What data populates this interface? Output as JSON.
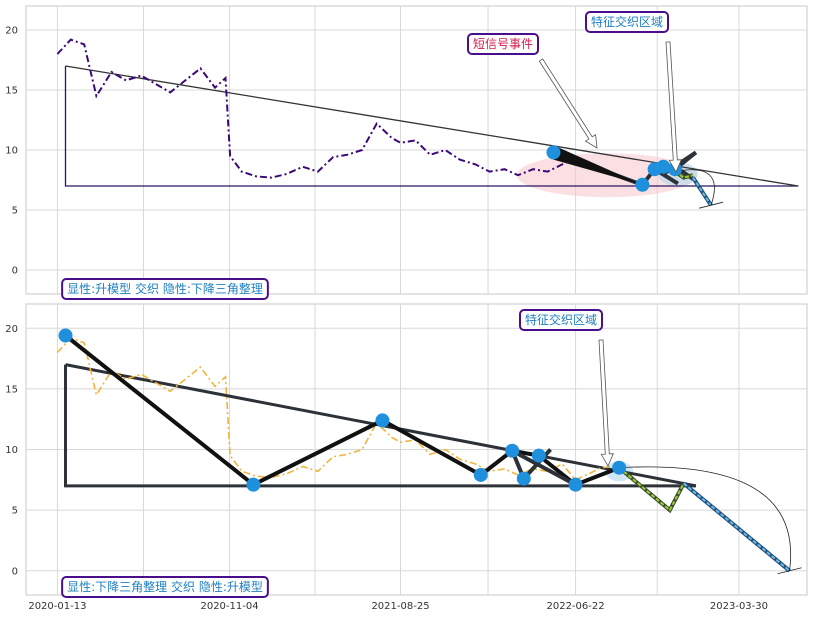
{
  "colors": {
    "top_price": "#3b0a78",
    "bottom_price": "#f0b43c",
    "node": "#1e90dd",
    "pattern": "#2d3138",
    "label_text_blue": "#1e7fc0",
    "label_text_red": "#d02050",
    "label_border": "#4b0e8a",
    "highlight": "#f5c6cb",
    "proj_green": "#9acd32",
    "proj_blue": "#6cb8e6"
  },
  "x_axis": {
    "tick_labels": [
      "2020-01-13",
      "2020-11-04",
      "2021-08-25",
      "2022-06-22",
      "2023-03-30"
    ]
  },
  "chart_data": [
    {
      "type": "line",
      "panel": "top",
      "ylim": [
        -2,
        22
      ],
      "y_ticks": [
        "0",
        "5",
        "10",
        "15",
        "20"
      ],
      "xlim": [
        "2019-11-20",
        "2023-07-25"
      ],
      "price_series": {
        "style": "dash-dot",
        "x": [
          "2020-01-13",
          "2020-02-05",
          "2020-02-28",
          "2020-03-20",
          "2020-04-15",
          "2020-05-10",
          "2020-06-05",
          "2020-06-30",
          "2020-07-25",
          "2020-08-20",
          "2020-09-15",
          "2020-10-10",
          "2020-10-28",
          "2020-11-05",
          "2020-11-25",
          "2020-12-20",
          "2021-01-15",
          "2021-02-10",
          "2021-03-10",
          "2021-04-05",
          "2021-05-01",
          "2021-05-25",
          "2021-06-20",
          "2021-07-15",
          "2021-08-10",
          "2021-08-25",
          "2021-09-20",
          "2021-10-15",
          "2021-11-10",
          "2021-12-05",
          "2022-01-01",
          "2022-01-25",
          "2022-02-20",
          "2022-03-15",
          "2022-04-10",
          "2022-05-05",
          "2022-05-30",
          "2022-06-15"
        ],
        "y": [
          18.0,
          19.2,
          18.8,
          14.5,
          16.5,
          15.8,
          16.2,
          15.5,
          14.8,
          15.8,
          16.8,
          15.2,
          16.0,
          9.5,
          8.2,
          7.8,
          7.7,
          8.0,
          8.6,
          8.2,
          9.4,
          9.6,
          10.0,
          12.2,
          11.0,
          10.6,
          10.8,
          9.6,
          10.0,
          9.2,
          8.8,
          8.2,
          8.4,
          7.9,
          8.4,
          8.2,
          8.8,
          9.2
        ]
      },
      "triangle": {
        "x": [
          "2020-01-27",
          "2020-01-27",
          "2023-07-10"
        ],
        "y": [
          17.0,
          7.0,
          7.0
        ]
      },
      "wedge_path": {
        "x": [
          "2022-05-15",
          "2022-10-15",
          "2022-11-05",
          "2022-11-20",
          "2022-12-10",
          "2023-01-15"
        ],
        "y": [
          9.8,
          7.1,
          8.4,
          8.6,
          8.4,
          9.8
        ]
      },
      "extra_legs": [
        {
          "x": [
            "2022-11-05",
            "2022-12-15"
          ],
          "y": [
            8.4,
            7.2
          ]
        },
        {
          "x": [
            "2022-11-20",
            "2023-01-15"
          ],
          "y": [
            8.0,
            9.8
          ]
        },
        {
          "x": [
            "2022-12-10",
            "2023-01-10"
          ],
          "y": [
            8.6,
            7.6
          ]
        }
      ],
      "nodes": {
        "x": [
          "2022-05-15",
          "2022-10-15",
          "2022-11-05",
          "2022-11-20",
          "2022-12-10"
        ],
        "y": [
          9.8,
          7.1,
          8.4,
          8.6,
          8.4
        ]
      },
      "projection": {
        "green_x": [
          "2022-12-10",
          "2022-12-25",
          "2023-01-10"
        ],
        "green_y": [
          8.2,
          7.7,
          7.9
        ],
        "blue_x": [
          "2023-01-10",
          "2023-02-10"
        ],
        "blue_y": [
          7.7,
          5.4
        ]
      },
      "labels": {
        "primary": "显性:升模型 交织 隐性:下降三角整理",
        "short_signal": "短信号事件",
        "feature_zone": "特征交织区域"
      }
    },
    {
      "type": "line",
      "panel": "bottom",
      "ylim": [
        -2,
        22
      ],
      "y_ticks": [
        "0",
        "5",
        "10",
        "15",
        "20"
      ],
      "xlim": [
        "2019-11-20",
        "2023-07-25"
      ],
      "price_series": {
        "style": "dash-dot",
        "x": [
          "2020-01-13",
          "2020-02-05",
          "2020-02-28",
          "2020-03-20",
          "2020-04-15",
          "2020-05-10",
          "2020-06-05",
          "2020-06-30",
          "2020-07-25",
          "2020-08-20",
          "2020-09-15",
          "2020-10-10",
          "2020-10-28",
          "2020-11-05",
          "2020-11-25",
          "2020-12-20",
          "2021-01-15",
          "2021-02-10",
          "2021-03-10",
          "2021-04-05",
          "2021-05-01",
          "2021-05-25",
          "2021-06-20",
          "2021-07-15",
          "2021-08-10",
          "2021-08-25",
          "2021-09-20",
          "2021-10-15",
          "2021-11-10",
          "2021-12-05",
          "2022-01-01",
          "2022-01-25",
          "2022-02-20",
          "2022-03-15",
          "2022-04-10",
          "2022-05-05",
          "2022-05-30",
          "2022-06-22",
          "2022-07-15",
          "2022-08-05",
          "2022-08-25",
          "2022-09-10"
        ],
        "y": [
          18.0,
          19.2,
          18.8,
          14.5,
          16.5,
          15.8,
          16.2,
          15.5,
          14.8,
          15.8,
          16.8,
          15.2,
          16.0,
          9.5,
          8.2,
          7.8,
          7.7,
          8.0,
          8.6,
          8.2,
          9.4,
          9.6,
          10.0,
          12.2,
          11.0,
          10.6,
          10.8,
          9.6,
          10.0,
          9.2,
          8.8,
          8.2,
          8.4,
          7.9,
          8.4,
          8.2,
          8.8,
          7.5,
          8.0,
          8.5,
          8.6,
          8.4
        ]
      },
      "triangle": {
        "x": [
          "2020-01-27",
          "2020-01-27",
          "2023-01-15"
        ],
        "y": [
          17.0,
          7.0,
          7.0
        ]
      },
      "upper_line": {
        "x": [
          "2020-01-27",
          "2023-01-15"
        ],
        "y": [
          17.0,
          7.0
        ]
      },
      "zigzag": {
        "x": [
          "2020-01-27",
          "2020-12-15",
          "2021-07-25",
          "2022-01-10",
          "2022-03-05",
          "2022-04-20",
          "2022-06-22",
          "2022-09-05"
        ],
        "y": [
          19.4,
          7.1,
          12.4,
          7.9,
          9.9,
          9.5,
          7.1,
          8.5
        ]
      },
      "extra_legs": [
        {
          "x": [
            "2022-03-05",
            "2022-03-25"
          ],
          "y": [
            9.9,
            7.6
          ]
        },
        {
          "x": [
            "2022-03-25",
            "2022-05-10"
          ],
          "y": [
            7.6,
            10.0
          ]
        },
        {
          "x": [
            "2022-03-05",
            "2022-06-22"
          ],
          "y": [
            9.9,
            7.1
          ]
        }
      ],
      "nodes": {
        "x": [
          "2020-01-27",
          "2020-12-15",
          "2021-07-25",
          "2022-01-10",
          "2022-03-05",
          "2022-03-25",
          "2022-04-20",
          "2022-06-22",
          "2022-09-05"
        ],
        "y": [
          19.4,
          7.1,
          12.4,
          7.9,
          9.9,
          7.6,
          9.5,
          7.1,
          8.5
        ]
      },
      "projection": {
        "green_x": [
          "2022-09-05",
          "2022-12-01",
          "2022-12-25"
        ],
        "green_y": [
          8.5,
          5.0,
          7.2
        ],
        "blue_x": [
          "2022-12-25",
          "2023-06-25"
        ],
        "blue_y": [
          7.2,
          0.0
        ]
      },
      "labels": {
        "primary": "显性:下降三角整理 交织 隐性:升模型",
        "feature_zone": "特征交织区域"
      }
    }
  ]
}
